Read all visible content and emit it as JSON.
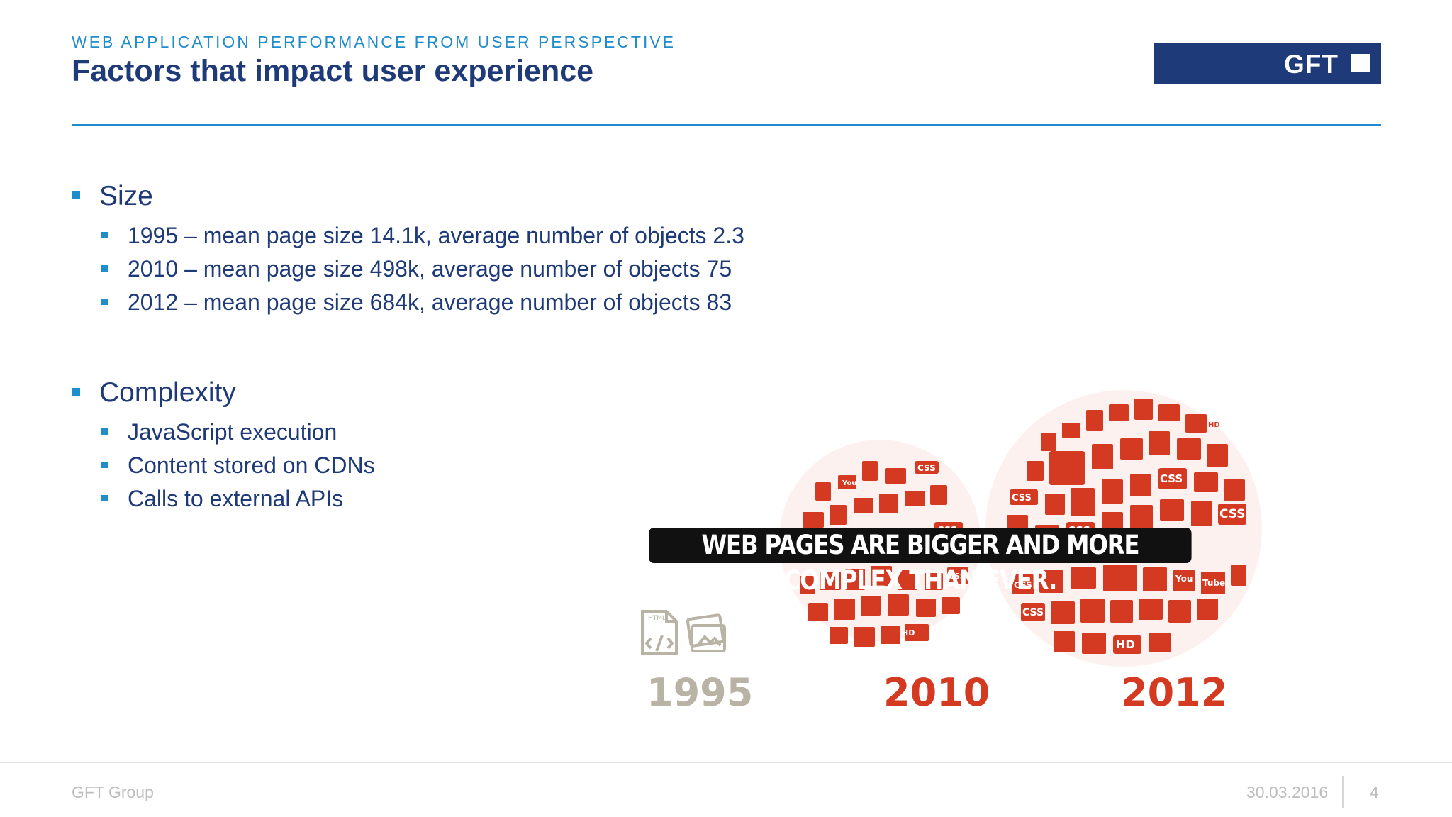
{
  "header": {
    "kicker": "WEB APPLICATION PERFORMANCE FROM USER PERSPECTIVE",
    "title": "Factors that impact user experience",
    "logo_text": "GFT"
  },
  "content": {
    "sections": [
      {
        "heading": "Size",
        "items": [
          "1995 – mean page size 14.1k, average number of objects 2.3",
          "2010 – mean page size 498k, average number of objects 75",
          "2012 – mean page size 684k, average number of objects 83"
        ]
      },
      {
        "heading": "Complexity",
        "items": [
          "JavaScript execution",
          "Content stored on CDNs",
          "Calls to external APIs"
        ]
      }
    ]
  },
  "graphic": {
    "banner": "WEB PAGES ARE BIGGER AND MORE COMPLEX THAN EVER.",
    "years": [
      "1995",
      "2010",
      "2012"
    ],
    "icon_labels": [
      "CSS",
      "HD",
      "JPEG",
      "You Tube"
    ],
    "colors": {
      "accent_red": "#d43a22",
      "muted_gray": "#b9b3a6"
    }
  },
  "footer": {
    "company": "GFT Group",
    "date": "30.03.2016",
    "page": "4"
  },
  "colors": {
    "navy": "#1e3a78",
    "blue": "#1f8ccc"
  }
}
